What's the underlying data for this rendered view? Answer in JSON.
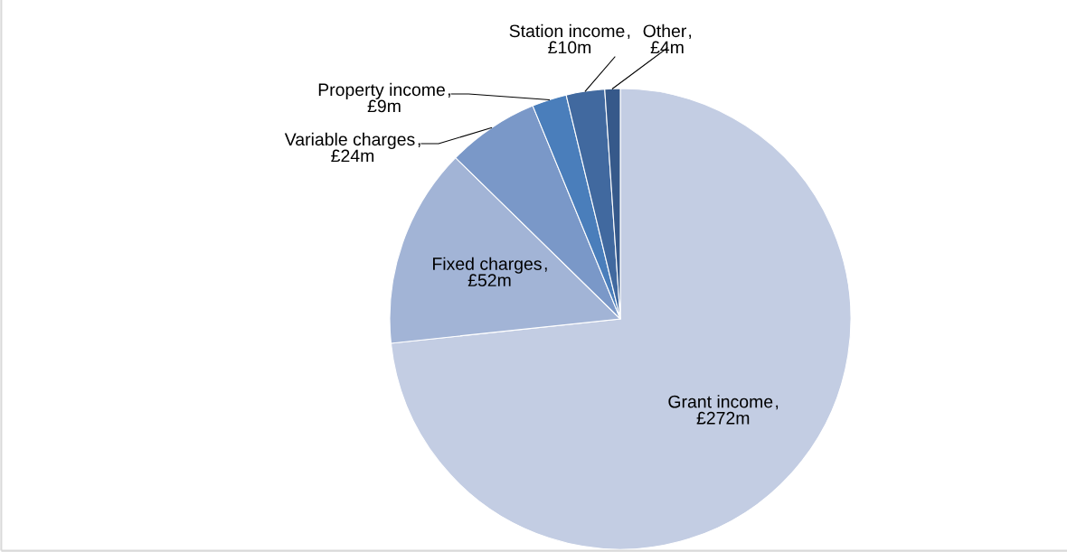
{
  "chart_data": {
    "type": "pie",
    "categories": [
      "Grant income",
      "Fixed charges",
      "Variable charges",
      "Property income",
      "Station income",
      "Other"
    ],
    "values": [
      272,
      52,
      24,
      9,
      10,
      4
    ],
    "value_labels": [
      "£272m",
      "£52m",
      "£24m",
      "£9m",
      "£10m",
      "£4m"
    ],
    "colors": [
      "#c3cde3",
      "#a2b4d6",
      "#7a98c8",
      "#4a7ebb",
      "#41699f",
      "#36598a"
    ],
    "legend": false
  }
}
